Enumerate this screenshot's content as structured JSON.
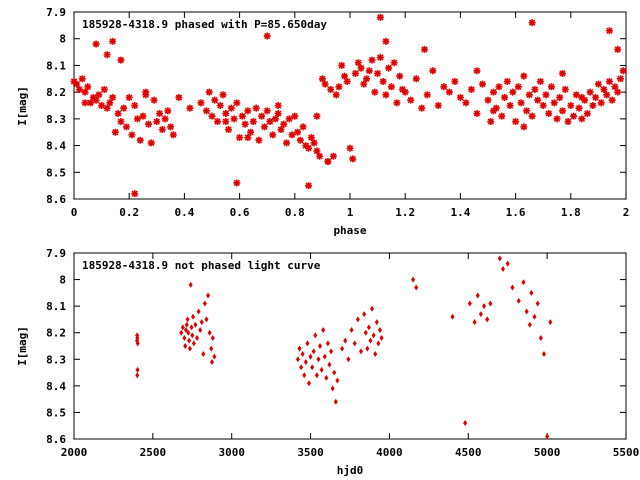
{
  "chart_data": [
    {
      "type": "scatter",
      "title": "185928-4318.9 phased with P=85.650day",
      "xlabel": "phase",
      "ylabel": "I[mag]",
      "xlim": [
        0,
        2
      ],
      "ylim": [
        7.9,
        8.6
      ],
      "y_inverted": true,
      "xticks": [
        "0",
        "0.2",
        "0.4",
        "0.6",
        "0.8",
        "1",
        "1.2",
        "1.4",
        "1.6",
        "1.8",
        "2"
      ],
      "yticks": [
        "7.9",
        "8",
        "8.1",
        "8.2",
        "8.3",
        "8.4",
        "8.5",
        "8.6"
      ],
      "marker": "star",
      "color": "#e00000",
      "x": [
        0.0,
        0.01,
        0.02,
        0.03,
        0.04,
        0.05,
        0.06,
        0.07,
        0.08,
        0.09,
        0.1,
        0.11,
        0.12,
        0.13,
        0.14,
        0.15,
        0.16,
        0.17,
        0.18,
        0.19,
        0.2,
        0.21,
        0.22,
        0.23,
        0.24,
        0.25,
        0.26,
        0.27,
        0.28,
        0.29,
        0.3,
        0.31,
        0.32,
        0.33,
        0.34,
        0.35,
        0.38,
        0.42,
        0.46,
        0.48,
        0.49,
        0.5,
        0.51,
        0.52,
        0.53,
        0.54,
        0.55,
        0.56,
        0.57,
        0.58,
        0.59,
        0.6,
        0.61,
        0.62,
        0.63,
        0.64,
        0.65,
        0.66,
        0.67,
        0.68,
        0.69,
        0.7,
        0.71,
        0.72,
        0.73,
        0.74,
        0.75,
        0.76,
        0.77,
        0.78,
        0.79,
        0.8,
        0.81,
        0.82,
        0.83,
        0.84,
        0.85,
        0.86,
        0.87,
        0.88,
        0.89,
        0.9,
        0.91,
        0.92,
        0.93,
        0.94,
        0.95,
        0.96,
        0.97,
        0.98,
        0.99,
        1.0,
        1.01,
        1.02,
        1.03,
        1.04,
        1.05,
        1.06,
        1.07,
        1.08,
        1.09,
        1.1,
        1.11,
        1.12,
        1.13,
        1.14,
        1.15,
        1.16,
        1.17,
        1.18,
        1.19,
        1.2,
        1.22,
        1.24,
        1.26,
        1.28,
        1.3,
        1.32,
        1.34,
        1.36,
        1.38,
        1.4,
        1.42,
        1.44,
        1.46,
        1.48,
        1.5,
        1.51,
        1.52,
        1.53,
        1.54,
        1.55,
        1.56,
        1.57,
        1.58,
        1.59,
        1.6,
        1.61,
        1.62,
        1.63,
        1.64,
        1.65,
        1.66,
        1.67,
        1.68,
        1.69,
        1.7,
        1.71,
        1.72,
        1.73,
        1.74,
        1.75,
        1.76,
        1.77,
        1.78,
        1.79,
        1.8,
        1.81,
        1.82,
        1.83,
        1.84,
        1.85,
        1.86,
        1.87,
        1.88,
        1.89,
        1.9,
        1.91,
        1.92,
        1.93,
        1.94,
        1.95,
        1.96,
        1.97,
        1.98,
        1.99,
        0.08,
        0.14,
        0.22,
        0.59,
        0.7,
        0.85,
        1.11,
        1.66,
        1.94,
        0.04,
        0.17,
        0.36,
        0.55,
        0.74,
        0.92,
        1.27,
        1.46,
        1.63,
        1.84,
        0.12,
        0.26,
        0.63,
        0.88,
        1.13,
        1.52,
        1.77,
        1.97
      ],
      "y": [
        8.16,
        8.17,
        8.19,
        8.15,
        8.2,
        8.18,
        8.24,
        8.22,
        8.23,
        8.21,
        8.25,
        8.19,
        8.26,
        8.24,
        8.22,
        8.35,
        8.28,
        8.31,
        8.26,
        8.33,
        8.22,
        8.36,
        8.25,
        8.3,
        8.38,
        8.29,
        8.21,
        8.32,
        8.39,
        8.23,
        8.31,
        8.28,
        8.34,
        8.3,
        8.27,
        8.33,
        8.22,
        8.26,
        8.24,
        8.27,
        8.2,
        8.29,
        8.23,
        8.31,
        8.25,
        8.21,
        8.28,
        8.34,
        8.26,
        8.3,
        8.24,
        8.37,
        8.29,
        8.32,
        8.27,
        8.35,
        8.31,
        8.26,
        8.38,
        8.29,
        8.33,
        8.27,
        8.31,
        8.36,
        8.3,
        8.28,
        8.34,
        8.32,
        8.39,
        8.3,
        8.36,
        8.29,
        8.35,
        8.38,
        8.33,
        8.4,
        8.41,
        8.37,
        8.39,
        8.42,
        8.44,
        8.15,
        8.17,
        8.46,
        8.19,
        8.44,
        8.21,
        8.18,
        8.1,
        8.14,
        8.16,
        8.41,
        8.45,
        8.13,
        8.09,
        8.11,
        8.17,
        8.15,
        8.12,
        8.08,
        8.2,
        8.13,
        8.07,
        8.16,
        8.21,
        8.11,
        8.18,
        8.09,
        8.24,
        8.14,
        8.19,
        8.2,
        8.23,
        8.15,
        8.26,
        8.21,
        8.12,
        8.25,
        8.18,
        8.2,
        8.16,
        8.22,
        8.24,
        8.19,
        8.28,
        8.17,
        8.23,
        8.31,
        8.2,
        8.26,
        8.18,
        8.29,
        8.22,
        8.16,
        8.25,
        8.2,
        8.31,
        8.18,
        8.24,
        8.14,
        8.27,
        8.21,
        8.29,
        8.19,
        8.23,
        8.16,
        8.25,
        8.21,
        8.28,
        8.18,
        8.24,
        8.3,
        8.22,
        8.27,
        8.19,
        8.31,
        8.25,
        8.29,
        8.21,
        8.26,
        8.3,
        8.23,
        8.28,
        8.2,
        8.25,
        8.22,
        8.17,
        8.24,
        8.19,
        8.21,
        8.16,
        8.23,
        8.18,
        8.2,
        8.15,
        8.12,
        8.02,
        8.01,
        8.58,
        8.54,
        7.99,
        8.55,
        7.92,
        7.94,
        7.97,
        8.24,
        8.08,
        8.36,
        8.31,
        8.25,
        8.46,
        8.04,
        8.12,
        8.33,
        8.22,
        8.06,
        8.2,
        8.37,
        8.29,
        8.01,
        8.27,
        8.13,
        8.04
      ],
      "grid": false
    },
    {
      "type": "scatter",
      "title": "185928-4318.9 not phased light curve",
      "xlabel": "hjd0",
      "ylabel": "I[mag]",
      "xlim": [
        2000,
        5500
      ],
      "ylim": [
        7.9,
        8.6
      ],
      "y_inverted": true,
      "xticks": [
        "2000",
        "2500",
        "3000",
        "3500",
        "4000",
        "4500",
        "5000",
        "5500"
      ],
      "yticks": [
        "7.9",
        "8",
        "8.1",
        "8.2",
        "8.3",
        "8.4",
        "8.5",
        "8.6"
      ],
      "marker": "diamond",
      "color": "#e00000",
      "x": [
        2400,
        2402,
        2404,
        2403,
        2401,
        2400,
        2680,
        2690,
        2700,
        2705,
        2710,
        2715,
        2720,
        2725,
        2730,
        2735,
        2740,
        2745,
        2750,
        2755,
        2760,
        2770,
        2780,
        2790,
        2800,
        2810,
        2820,
        2830,
        2840,
        2850,
        2860,
        2870,
        2875,
        2880,
        2890,
        3420,
        3430,
        3440,
        3450,
        3460,
        3470,
        3480,
        3490,
        3500,
        3510,
        3520,
        3530,
        3540,
        3550,
        3560,
        3570,
        3580,
        3590,
        3600,
        3610,
        3620,
        3630,
        3640,
        3650,
        3660,
        3670,
        3700,
        3720,
        3740,
        3760,
        3780,
        3800,
        3820,
        3840,
        3850,
        3860,
        3870,
        3880,
        3890,
        3900,
        3910,
        3920,
        3930,
        3940,
        3950,
        4150,
        4170,
        4400,
        4480,
        4510,
        4540,
        4560,
        4580,
        4600,
        4620,
        4640,
        4700,
        4720,
        4750,
        4780,
        4820,
        4850,
        4870,
        4890,
        4900,
        4920,
        4940,
        4960,
        4980,
        5000,
        5020
      ],
      "y": [
        8.21,
        8.22,
        8.24,
        8.34,
        8.36,
        8.23,
        8.2,
        8.18,
        8.22,
        8.25,
        8.19,
        8.17,
        8.15,
        8.2,
        8.23,
        8.26,
        8.02,
        8.18,
        8.21,
        8.14,
        8.24,
        8.17,
        8.22,
        8.12,
        8.19,
        8.16,
        8.28,
        8.09,
        8.15,
        8.06,
        8.2,
        8.26,
        8.31,
        8.22,
        8.29,
        8.3,
        8.26,
        8.33,
        8.28,
        8.36,
        8.31,
        8.24,
        8.39,
        8.29,
        8.33,
        8.27,
        8.21,
        8.36,
        8.3,
        8.25,
        8.34,
        8.19,
        8.29,
        8.37,
        8.24,
        8.32,
        8.27,
        8.41,
        8.35,
        8.46,
        8.38,
        8.26,
        8.23,
        8.3,
        8.19,
        8.24,
        8.15,
        8.27,
        8.13,
        8.2,
        8.26,
        8.18,
        8.23,
        8.11,
        8.21,
        8.28,
        8.16,
        8.24,
        8.19,
        8.22,
        8.0,
        8.03,
        8.14,
        8.54,
        8.09,
        8.16,
        8.06,
        8.13,
        8.1,
        8.15,
        8.09,
        7.92,
        7.96,
        7.94,
        8.03,
        8.08,
        8.01,
        8.12,
        8.17,
        8.05,
        8.14,
        8.09,
        8.22,
        8.28,
        8.59,
        8.16
      ],
      "grid": false
    }
  ]
}
